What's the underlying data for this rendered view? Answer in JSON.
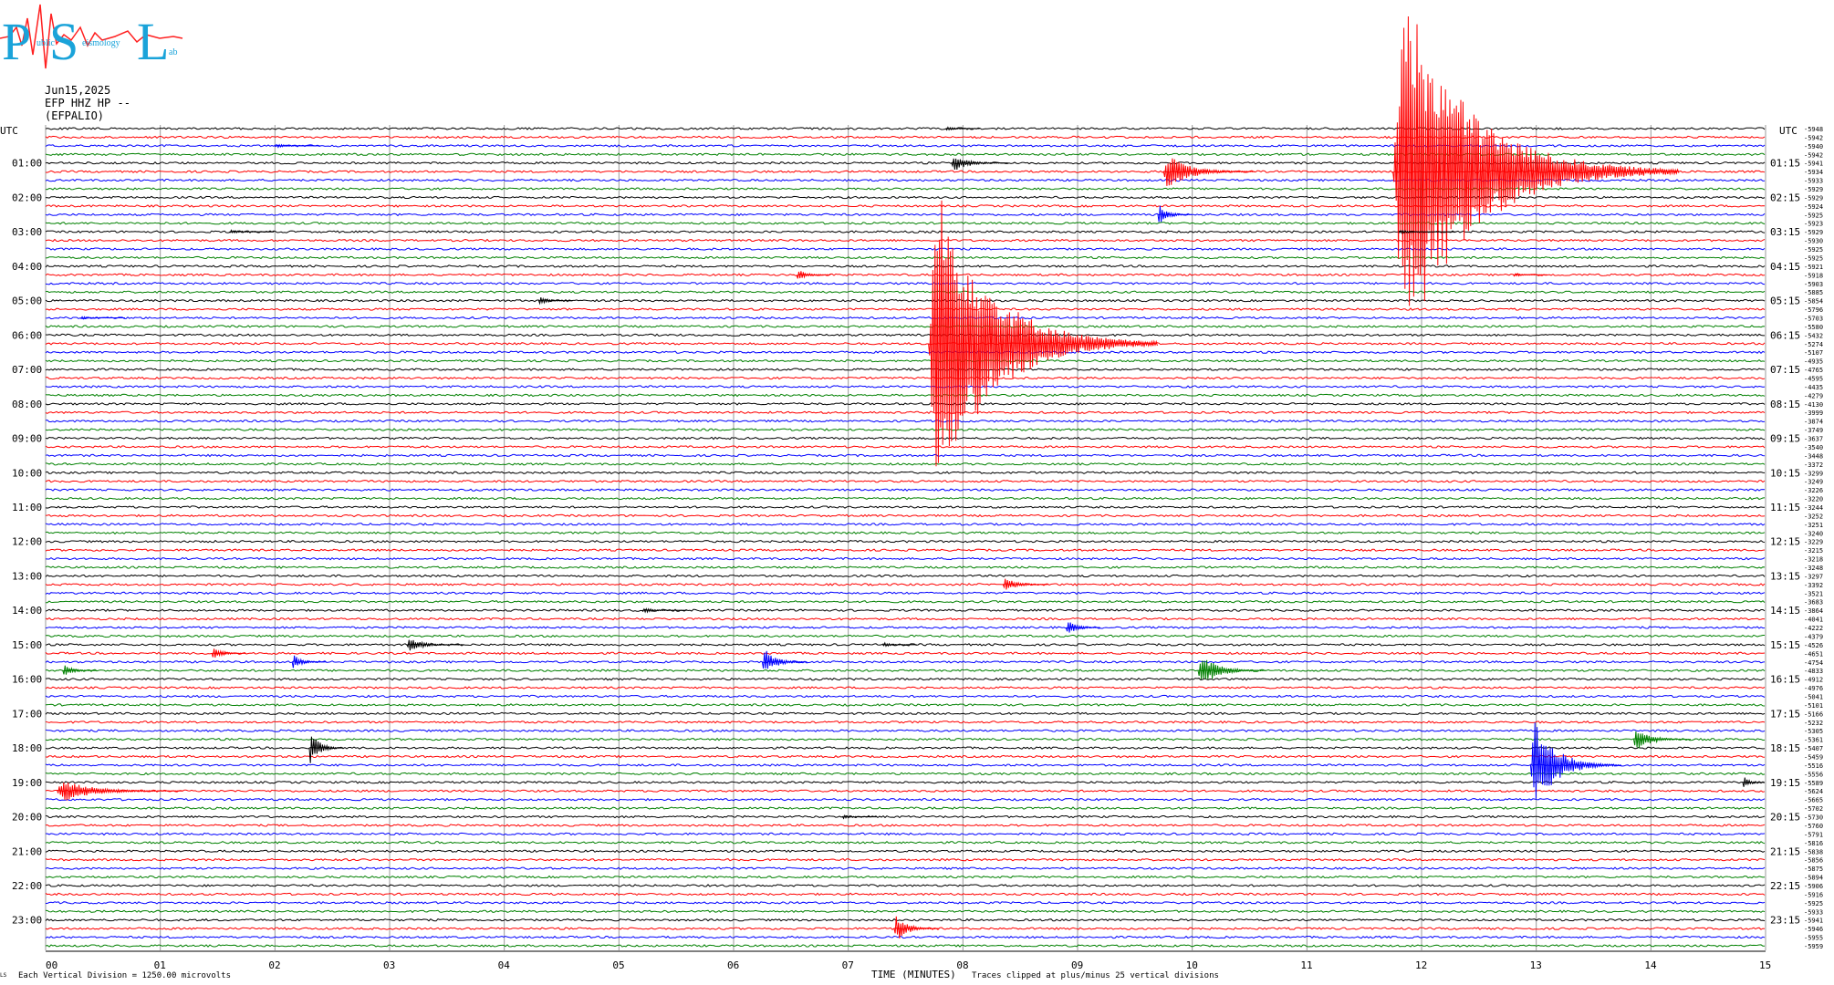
{
  "logo": {
    "letters": [
      "P",
      "S",
      "L"
    ],
    "words": [
      "ublic",
      "eismology",
      "ab"
    ]
  },
  "header": {
    "date": "Jun15,2025",
    "station": "EFP HHZ HP --",
    "network": "(EFPALIO)"
  },
  "footer": {
    "left_mark": "LS",
    "division_note": "Each Vertical Division = 1250.00 microvolts",
    "clip_note": "Traces clipped at plus/minus 25 vertical divisions"
  },
  "colors": {
    "trace_cycle": [
      "#000000",
      "#ff0000",
      "#0000ff",
      "#008000"
    ],
    "logo": "#1aa3d9",
    "logo_accent": "#ff2020"
  },
  "chart_data": {
    "type": "line",
    "title": "",
    "xlabel": "TIME (MINUTES)",
    "ylabel": "",
    "left_axis_title": "UTC",
    "right_axis_title": "UTC",
    "xlim": [
      0,
      15
    ],
    "x_ticks": [
      "00",
      "01",
      "02",
      "03",
      "04",
      "05",
      "06",
      "07",
      "08",
      "09",
      "10",
      "11",
      "12",
      "13",
      "14",
      "15"
    ],
    "rows_per_hour": 4,
    "row_minutes": 15,
    "left_hour_labels": [
      "01:00",
      "02:00",
      "03:00",
      "04:00",
      "05:00",
      "06:00",
      "07:00",
      "08:00",
      "09:00",
      "10:00",
      "11:00",
      "12:00",
      "13:00",
      "14:00",
      "15:00",
      "16:00",
      "17:00",
      "18:00",
      "19:00",
      "20:00",
      "21:00",
      "22:00",
      "23:00"
    ],
    "right_hour_labels": [
      "01:15",
      "02:15",
      "03:15",
      "04:15",
      "05:15",
      "06:15",
      "07:15",
      "08:15",
      "09:15",
      "10:15",
      "11:15",
      "12:15",
      "13:15",
      "14:15",
      "15:15",
      "16:15",
      "17:15",
      "18:15",
      "19:15",
      "20:15",
      "21:15",
      "22:15",
      "23:15"
    ],
    "trace_offsets": [
      "-5948",
      "-5942",
      "-5940",
      "-5942",
      "-5941",
      "-5934",
      "-5933",
      "-5929",
      "-5929",
      "-5924",
      "-5925",
      "-5923",
      "-5929",
      "-5930",
      "-5925",
      "-5925",
      "-5921",
      "-5918",
      "-5903",
      "-5885",
      "-5854",
      "-5796",
      "-5703",
      "-5580",
      "-5432",
      "-5274",
      "-5107",
      "-4935",
      "-4765",
      "-4595",
      "-4435",
      "-4279",
      "-4130",
      "-3999",
      "-3874",
      "-3749",
      "-3637",
      "-3540",
      "-3448",
      "-3372",
      "-3299",
      "-3249",
      "-3226",
      "-3220",
      "-3244",
      "-3252",
      "-3251",
      "-3240",
      "-3229",
      "-3215",
      "-3218",
      "-3248",
      "-3297",
      "-3392",
      "-3521",
      "-3683",
      "-3864",
      "-4041",
      "-4222",
      "-4379",
      "-4526",
      "-4651",
      "-4754",
      "-4833",
      "-4912",
      "-4976",
      "-5041",
      "-5101",
      "-5166",
      "-5232",
      "-5305",
      "-5361",
      "-5407",
      "-5459",
      "-5516",
      "-5556",
      "-5589",
      "-5624",
      "-5665",
      "-5702",
      "-5730",
      "-5760",
      "-5791",
      "-5816",
      "-5838",
      "-5856",
      "-5875",
      "-5894",
      "-5906",
      "-5916",
      "-5925",
      "-5933",
      "-5941",
      "-5946",
      "-5955",
      "-5959"
    ],
    "events": [
      {
        "row": 0,
        "minute": 7.85,
        "amplitude": 0.3,
        "duration": 0.3
      },
      {
        "row": 2,
        "minute": 2.0,
        "amplitude": 0.25,
        "duration": 0.4
      },
      {
        "row": 4,
        "minute": 7.9,
        "amplitude": 1.3,
        "duration": 0.5
      },
      {
        "row": 5,
        "minute": 9.75,
        "amplitude": 2.5,
        "duration": 0.8
      },
      {
        "row": 10,
        "minute": 9.7,
        "amplitude": 1.6,
        "duration": 0.3
      },
      {
        "row": 12,
        "minute": 1.6,
        "amplitude": 0.25,
        "duration": 0.4
      },
      {
        "row": 17,
        "minute": 6.55,
        "amplitude": 0.9,
        "duration": 0.3
      },
      {
        "row": 20,
        "minute": 4.3,
        "amplitude": 0.6,
        "duration": 0.3
      },
      {
        "row": 22,
        "minute": 0.3,
        "amplitude": 0.2,
        "duration": 0.4
      },
      {
        "row": 25,
        "minute": 7.7,
        "amplitude": 22,
        "duration": 2.0
      },
      {
        "row": 5,
        "minute": 11.75,
        "amplitude": 30,
        "duration": 2.5
      },
      {
        "row": 12,
        "minute": 11.8,
        "amplitude": 0.25,
        "duration": 0.5
      },
      {
        "row": 17,
        "minute": 12.8,
        "amplitude": 0.25,
        "duration": 0.3
      },
      {
        "row": 53,
        "minute": 8.35,
        "amplitude": 1.1,
        "duration": 0.4
      },
      {
        "row": 56,
        "minute": 5.2,
        "amplitude": 0.4,
        "duration": 0.4
      },
      {
        "row": 58,
        "minute": 8.9,
        "amplitude": 1.3,
        "duration": 0.3
      },
      {
        "row": 60,
        "minute": 3.15,
        "amplitude": 1.0,
        "duration": 0.5
      },
      {
        "row": 60,
        "minute": 7.3,
        "amplitude": 0.3,
        "duration": 0.3
      },
      {
        "row": 61,
        "minute": 1.45,
        "amplitude": 1.1,
        "duration": 0.3
      },
      {
        "row": 62,
        "minute": 2.15,
        "amplitude": 1.0,
        "duration": 0.3
      },
      {
        "row": 62,
        "minute": 6.25,
        "amplitude": 2.0,
        "duration": 0.4
      },
      {
        "row": 63,
        "minute": 0.15,
        "amplitude": 0.9,
        "duration": 0.3
      },
      {
        "row": 63,
        "minute": 10.05,
        "amplitude": 2.5,
        "duration": 0.6
      },
      {
        "row": 72,
        "minute": 2.3,
        "amplitude": 2.6,
        "duration": 0.3
      },
      {
        "row": 71,
        "minute": 13.85,
        "amplitude": 1.8,
        "duration": 0.5
      },
      {
        "row": 74,
        "minute": 12.95,
        "amplitude": 6.5,
        "duration": 0.8
      },
      {
        "row": 76,
        "minute": 14.8,
        "amplitude": 1.0,
        "duration": 0.2
      },
      {
        "row": 77,
        "minute": 0.1,
        "amplitude": 1.6,
        "duration": 1.1
      },
      {
        "row": 80,
        "minute": 6.95,
        "amplitude": 0.3,
        "duration": 0.3
      },
      {
        "row": 93,
        "minute": 7.4,
        "amplitude": 2.0,
        "duration": 0.4
      }
    ]
  }
}
